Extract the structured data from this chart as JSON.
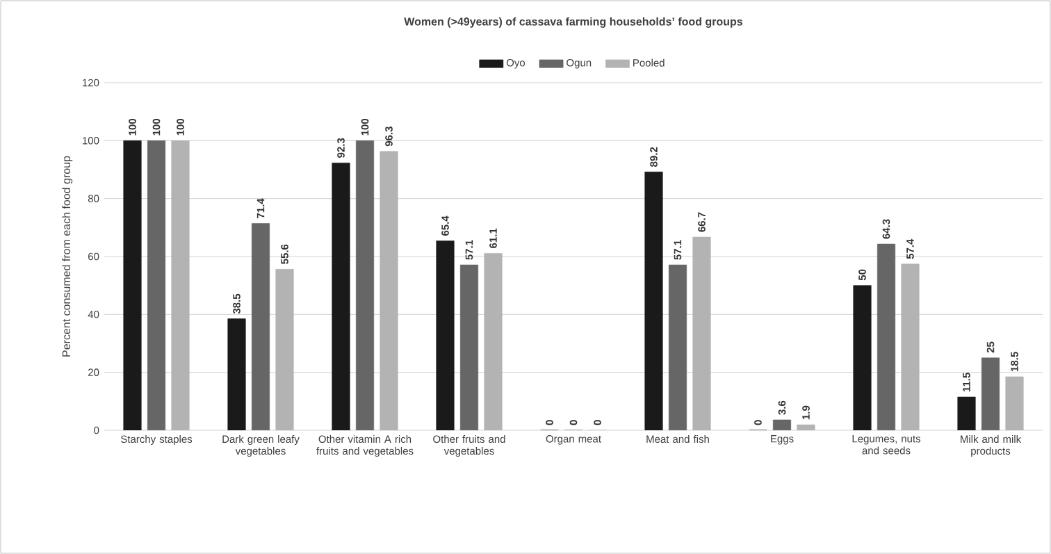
{
  "chart_data": {
    "type": "bar",
    "title": "Women (>49years) of cassava farming households’ food groups",
    "ylabel": "Percent consumed from  each food group",
    "categories": [
      "Starchy staples",
      "Dark green leafy vegetables",
      "Other vitamin A rich fruits and vegetables",
      "Other fruits and vegetables",
      "Organ meat",
      "Meat and fish",
      "Eggs",
      "Legumes, nuts and seeds",
      "Milk and milk products"
    ],
    "series": [
      {
        "name": "Oyo",
        "color": "#1a1a1a",
        "values": [
          100,
          38.5,
          92.3,
          65.4,
          0,
          89.2,
          0,
          50,
          11.5
        ]
      },
      {
        "name": "Ogun",
        "color": "#666666",
        "values": [
          100,
          71.4,
          100,
          57.1,
          0,
          57.1,
          3.6,
          64.3,
          25
        ]
      },
      {
        "name": "Pooled",
        "color": "#b3b3b3",
        "values": [
          100,
          55.6,
          96.3,
          61.1,
          0,
          66.7,
          1.9,
          57.4,
          18.5
        ]
      }
    ],
    "ylim": [
      0,
      120
    ],
    "yticks": [
      0,
      20,
      40,
      60,
      80,
      100,
      120
    ],
    "grid": "y",
    "legend": "top",
    "data_labels": true
  }
}
